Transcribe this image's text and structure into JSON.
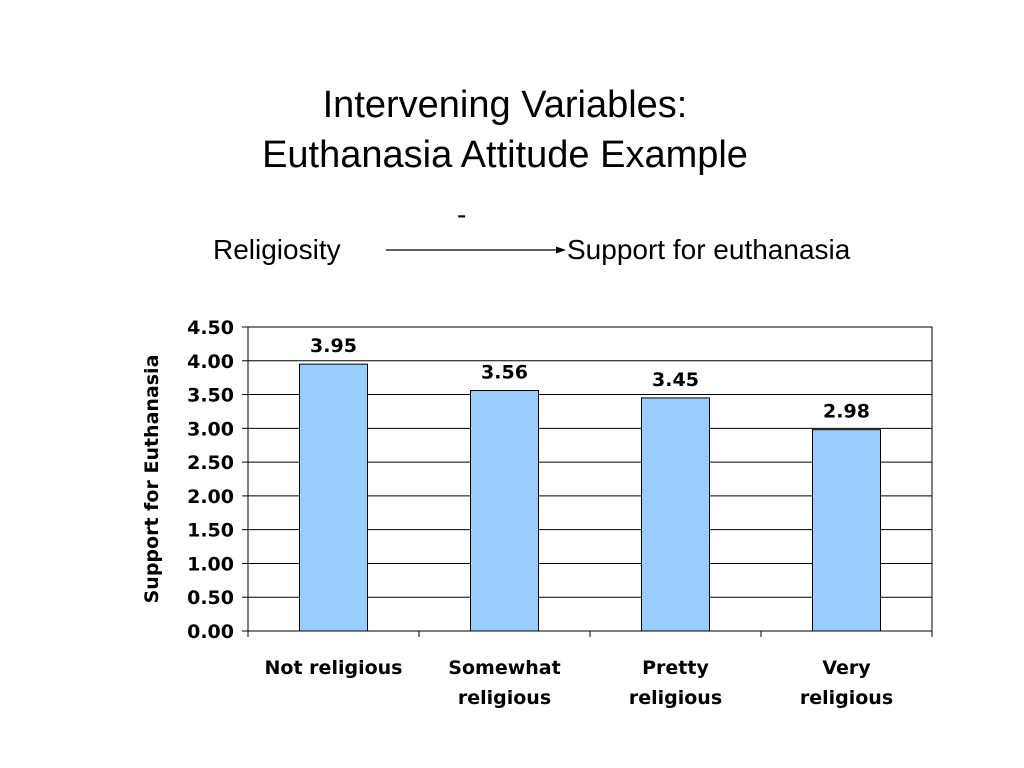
{
  "slide": {
    "title_line1": "Intervening Variables:",
    "title_line2": "Euthanasia Attitude Example",
    "relation": {
      "left": "Religiosity",
      "right": "Support for euthanasia",
      "sign": "-"
    }
  },
  "chart_data": {
    "type": "bar",
    "categories": [
      [
        "Not religious"
      ],
      [
        "Somewhat",
        "religious"
      ],
      [
        "Pretty",
        "religious"
      ],
      [
        "Very",
        "religious"
      ]
    ],
    "values": [
      3.95,
      3.56,
      3.45,
      2.98
    ],
    "value_labels": [
      "3.95",
      "3.56",
      "3.45",
      "2.98"
    ],
    "ylabel": "Support for Euthanasia",
    "xlabel": "",
    "ylim": [
      0,
      4.5
    ],
    "yticks": [
      "0.00",
      "0.50",
      "1.00",
      "1.50",
      "2.00",
      "2.50",
      "3.00",
      "3.50",
      "4.00",
      "4.50"
    ],
    "grid": true,
    "legend": "none",
    "colors": {
      "bar": "#99ccff",
      "bar_border": "#000000",
      "grid": "#000000"
    }
  }
}
